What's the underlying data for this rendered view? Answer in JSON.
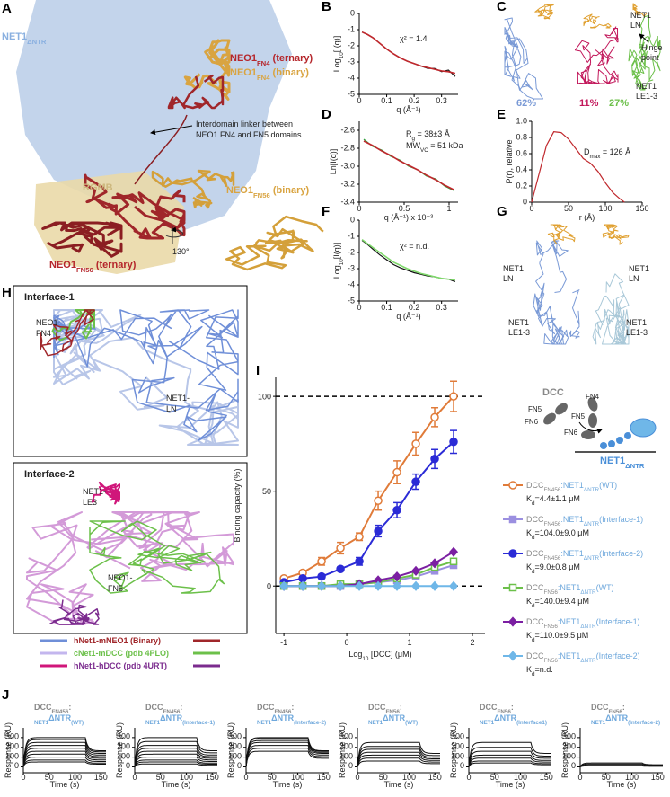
{
  "panel_letters": [
    "A",
    "B",
    "C",
    "D",
    "E",
    "F",
    "G",
    "H",
    "I",
    "J"
  ],
  "panel_A": {
    "net1": [
      "NET1",
      "ΔNTR"
    ],
    "fn4_ternary": [
      "NEO1",
      "FN4",
      " (ternary)"
    ],
    "fn4_binary": [
      "NEO1",
      "FN4",
      " (binary)"
    ],
    "linker_line1": "Interdomain linker between",
    "linker_line2": "NEO1 FN4 and FN5 domains",
    "rgmb": "RGMB",
    "fn56_binary": [
      "NEO1",
      "FN56",
      " (binary)"
    ],
    "rotation": "130°",
    "fn56_ternary": [
      "NEO1",
      "FN56",
      " (ternary)"
    ]
  },
  "panel_C": {
    "ln_line1": "NET1",
    "ln_line2": "LN",
    "hinge_line1": "Hinge",
    "hinge_line2": "point",
    "le_line1": "NET1",
    "le_line2": "LE1-3",
    "pop1": "62%",
    "pop2": "11%",
    "pop3": "27%"
  },
  "panel_G": {
    "ln_left_1": "NET1",
    "ln_left_2": "LN",
    "ln_right_1": "NET1",
    "ln_right_2": "LN",
    "le_left_1": "NET1",
    "le_left_2": "LE1-3",
    "le_right_1": "NET1",
    "le_right_2": "LE1-3"
  },
  "panel_H": {
    "box1_title": "Interface-1",
    "fn4_1": "NEO1-",
    "fn4_2": "FN4",
    "ln_1": "NET1-",
    "ln_2": "LN",
    "box2_title": "Interface-2",
    "le3_1": "NET1-",
    "le3_2": "LE3",
    "fn5_1": "NEO1-",
    "fn5_2": "FN5",
    "legend": [
      {
        "label": "hNet1-mNEO1 (Binary)",
        "color_left": "#6f8fd8",
        "color_right": "#a0262a"
      },
      {
        "label": "cNet1-mDCC (pdb 4PLO)",
        "color_left": "#c3b6ee",
        "color_right": "#6cc04a"
      },
      {
        "label": "hNet1-hDCC (pdb 4URT)",
        "color_left": "#d0167a",
        "color_right": "#7b2b8e"
      }
    ]
  },
  "panel_I_schematic": {
    "dcc": "DCC",
    "fn4": "FN4",
    "fn5_left": "FN5",
    "fn6_left": "FN6",
    "fn5_right": "FN5",
    "fn6_right": "FN6",
    "net1": [
      "NET1",
      "ΔNTR"
    ]
  },
  "chart_data": [
    {
      "type": "line",
      "xlabel": "q (Å⁻¹)",
      "ylabel": [
        "Log",
        "10",
        "[I(q)]"
      ],
      "annotations": [
        [
          "χ² = 1.4"
        ]
      ],
      "x": [
        0.01,
        0.03,
        0.05,
        0.075,
        0.1,
        0.125,
        0.15,
        0.175,
        0.2,
        0.225,
        0.25,
        0.275,
        0.3,
        0.325,
        0.35
      ],
      "series": [
        {
          "color": "#111111",
          "values": [
            -1.15,
            -1.3,
            -1.5,
            -1.85,
            -2.2,
            -2.5,
            -2.75,
            -2.95,
            -3.1,
            -3.25,
            -3.4,
            -3.4,
            -3.6,
            -3.5,
            -3.9
          ]
        },
        {
          "color": "#c0282d",
          "values": [
            -1.15,
            -1.3,
            -1.5,
            -1.85,
            -2.2,
            -2.5,
            -2.75,
            -2.95,
            -3.1,
            -3.25,
            -3.35,
            -3.45,
            -3.55,
            -3.6,
            -3.7
          ]
        }
      ],
      "xlim": [
        0,
        0.36
      ],
      "xticks": [
        0,
        0.1,
        0.2,
        0.3
      ],
      "ylim": [
        -5,
        0
      ],
      "yticks": [
        0,
        -1,
        -2,
        -3,
        -4,
        -5
      ]
    },
    {
      "type": "line",
      "xlabel": "q (Å⁻¹) x 10⁻³",
      "ylabel": [
        "Ln[I(q)]"
      ],
      "annotations": [
        [
          "R",
          "g",
          " = 38±3 Å"
        ],
        [
          "MW",
          "VC",
          " = 51 kDa"
        ]
      ],
      "x": [
        0.05,
        0.15,
        0.25,
        0.35,
        0.45,
        0.55,
        0.65,
        0.75,
        0.85,
        0.95,
        1.05
      ],
      "series": [
        {
          "color": "#2f9e3a",
          "values": [
            -2.7,
            -2.78,
            -2.82,
            -2.89,
            -2.93,
            -3.0,
            -3.04,
            -3.11,
            -3.14,
            -3.22,
            -3.27
          ]
        },
        {
          "color": "#c0282d",
          "values": [
            -2.72,
            -2.77,
            -2.83,
            -2.88,
            -2.94,
            -2.99,
            -3.04,
            -3.1,
            -3.15,
            -3.21,
            -3.26
          ]
        }
      ],
      "xlim": [
        0,
        1.1
      ],
      "xticks": [
        0,
        0.5,
        1
      ],
      "ylim": [
        -3.4,
        -2.5
      ],
      "yticks": [
        -2.6,
        -2.8,
        {
          "value": -3,
          "label": "-3.0"
        },
        -3.2,
        -3.4
      ]
    },
    {
      "type": "line",
      "xlabel": "r (Å)",
      "ylabel": [
        "P(r), relative"
      ],
      "annotations": [
        [
          "D",
          "max",
          " = 126 Å"
        ]
      ],
      "x": [
        0,
        10,
        20,
        30,
        40,
        50,
        60,
        70,
        80,
        90,
        100,
        110,
        120,
        126
      ],
      "series": [
        {
          "color": "#c0282d",
          "values": [
            0,
            0.35,
            0.7,
            0.87,
            0.86,
            0.78,
            0.66,
            0.54,
            0.48,
            0.38,
            0.24,
            0.12,
            0.04,
            0
          ]
        }
      ],
      "xlim": [
        0,
        150
      ],
      "xticks": [
        0,
        50,
        100,
        150
      ],
      "ylim": [
        0,
        1
      ],
      "yticks": [
        0,
        0.2,
        0.4,
        0.6,
        0.8,
        {
          "value": 1,
          "label": "1.0"
        }
      ]
    },
    {
      "type": "line",
      "xlabel": "q (Å⁻¹)",
      "ylabel": [
        "Log",
        "10",
        "[I(q)]"
      ],
      "annotations": [
        [
          "χ² = n.d."
        ]
      ],
      "x": [
        0.01,
        0.03,
        0.05,
        0.075,
        0.1,
        0.125,
        0.15,
        0.175,
        0.2,
        0.225,
        0.25,
        0.275,
        0.3,
        0.325,
        0.35
      ],
      "series": [
        {
          "color": "#111111",
          "values": [
            -1.25,
            -1.5,
            -1.8,
            -2.15,
            -2.45,
            -2.75,
            -2.95,
            -3.1,
            -3.25,
            -3.35,
            -3.45,
            -3.5,
            -3.6,
            -3.65,
            -3.8
          ]
        },
        {
          "color": "#7fd86b",
          "values": [
            -1.2,
            -1.45,
            -1.7,
            -2.0,
            -2.3,
            -2.6,
            -2.8,
            -3.0,
            -3.15,
            -3.3,
            -3.4,
            -3.5,
            -3.6,
            -3.65,
            -3.7
          ]
        }
      ],
      "xlim": [
        0,
        0.36
      ],
      "xticks": [
        0,
        0.1,
        0.2,
        0.3
      ],
      "ylim": [
        -5,
        0
      ],
      "yticks": [
        0,
        -1,
        -2,
        -3,
        -4,
        -5
      ]
    },
    {
      "type": "scatter",
      "xlabel": [
        "Log",
        "10",
        " [DCC] (μM)"
      ],
      "ylabel": [
        "Binding capacity (%)"
      ],
      "x": [
        -1,
        -0.7,
        -0.4,
        -0.1,
        0.2,
        0.5,
        0.8,
        1.1,
        1.4,
        1.7
      ],
      "reference_lines": [
        100,
        0
      ],
      "series": [
        {
          "name": [
            "DCC",
            "FN456",
            ":NET1",
            "ΔNTR",
            "(WT)"
          ],
          "kd": [
            "K",
            "d",
            "=4.4±1.1 μM"
          ],
          "color": "#e07b39",
          "marker": "circle",
          "filled": false,
          "values": [
            4,
            7,
            13,
            20,
            26,
            45,
            60,
            75,
            89,
            100
          ],
          "errors": [
            1,
            1,
            2,
            3,
            2,
            5,
            6,
            6,
            5,
            8
          ]
        },
        {
          "name": [
            "DCC",
            "FN456",
            ":NET1",
            "ΔNTR",
            "(Interface-1)"
          ],
          "kd": [
            "K",
            "d",
            "=104.0±9.0 μM"
          ],
          "color": "#9b8fe0",
          "marker": "square",
          "filled": true,
          "values": [
            0,
            0,
            0,
            0,
            1,
            2,
            3,
            5,
            8,
            11
          ]
        },
        {
          "name": [
            "DCC",
            "FN456",
            ":NET1",
            "ΔNTR",
            "(Interface-2)"
          ],
          "kd": [
            "K",
            "d",
            "=9.0±0.8 μM"
          ],
          "color": "#2b2bd6",
          "marker": "circle",
          "filled": true,
          "values": [
            2,
            4,
            5,
            9,
            13,
            29,
            40,
            55,
            67,
            76
          ],
          "errors": [
            1,
            1,
            1,
            1,
            2,
            3,
            4,
            4,
            5,
            6
          ]
        },
        {
          "name": [
            "DCC",
            "FN56",
            ":NET1",
            "ΔNTR",
            "(WT)"
          ],
          "kd": [
            "K",
            "d",
            "=140.0±9.4 μM"
          ],
          "color": "#6cc04a",
          "marker": "square",
          "filled": false,
          "values": [
            0,
            0,
            0,
            1,
            1,
            2,
            4,
            6,
            10,
            13
          ]
        },
        {
          "name": [
            "DCC",
            "FN56",
            ":NET1",
            "ΔNTR",
            "(Interface-1)"
          ],
          "kd": [
            "K",
            "d",
            "=110.0±9.5 μM"
          ],
          "color": "#7b1fa2",
          "marker": "diamond",
          "filled": true,
          "values": [
            0,
            0,
            0,
            0,
            1,
            3,
            5,
            8,
            12,
            18
          ]
        },
        {
          "name": [
            "DCC",
            "FN56",
            ":NET1",
            "ΔNTR",
            "(Interface-2)"
          ],
          "kd": [
            "K",
            "d",
            "=n.d."
          ],
          "color": "#6fb7e8",
          "marker": "diamond",
          "filled": true,
          "values": [
            0,
            0,
            0,
            0,
            0,
            0,
            0,
            0,
            0,
            0
          ]
        }
      ],
      "xlim": [
        -1.13,
        2.2
      ],
      "xticks": [
        -1,
        0,
        1,
        2
      ],
      "ylim": [
        -25,
        110
      ],
      "yticks": [
        0,
        50,
        100
      ]
    },
    {
      "type": "sensorgram",
      "title": [
        "DCC",
        "FN456",
        ":",
        "NET1",
        "ΔNTR",
        "(WT)"
      ],
      "xlabel": "Time (s)",
      "ylabel": "Response (RU)",
      "color": "#111111",
      "values": [
        300,
        280,
        250,
        220,
        190,
        160,
        130,
        100,
        70,
        50
      ],
      "xlim": [
        0,
        160
      ],
      "xticks": [
        0,
        50,
        100,
        150
      ],
      "ylim": [
        -60,
        400
      ],
      "yticks": [
        0,
        100,
        200,
        300
      ]
    },
    {
      "type": "sensorgram",
      "title": [
        "DCC",
        "FN456",
        ":",
        "NET1",
        "ΔNTR",
        "(Interface-1)"
      ],
      "xlabel": "Time (s)",
      "ylabel": "Response (RU)",
      "color": "#111111",
      "values": [
        300,
        260,
        220,
        190,
        160,
        130,
        100,
        70,
        50,
        30
      ],
      "xlim": [
        0,
        160
      ],
      "xticks": [
        0,
        50,
        100,
        150
      ],
      "ylim": [
        -60,
        400
      ],
      "yticks": [
        0,
        100,
        200,
        300
      ]
    },
    {
      "type": "sensorgram",
      "title": [
        "DCC",
        "FN456",
        ":",
        "NET1",
        "ΔNTR",
        "(Interface-2)"
      ],
      "xlabel": "Time (s)",
      "ylabel": "Response (RU)",
      "color": "#111111",
      "values": [
        300,
        290,
        270,
        250,
        220,
        190,
        160
      ],
      "xlim": [
        0,
        160
      ],
      "xticks": [
        0,
        50,
        100,
        150
      ],
      "ylim": [
        -60,
        400
      ],
      "yticks": [
        0,
        100,
        200,
        300
      ]
    },
    {
      "type": "sensorgram",
      "title": [
        "DCC",
        "FN56",
        ":",
        "NET1",
        "ΔNTR",
        "(WT)"
      ],
      "xlabel": "Time (s)",
      "ylabel": "Response (RU)",
      "color": "#111111",
      "values": [
        250,
        210,
        180,
        150,
        120,
        90,
        60
      ],
      "xlim": [
        0,
        160
      ],
      "xticks": [
        0,
        50,
        100,
        150
      ],
      "ylim": [
        -60,
        400
      ],
      "yticks": [
        0,
        100,
        200,
        300
      ]
    },
    {
      "type": "sensorgram",
      "title": [
        "DCC",
        "FN56",
        ":",
        "NET1",
        "ΔNTR",
        "(Interface1)"
      ],
      "xlabel": "Time (s)",
      "ylabel": "Response (RU)",
      "color": "#111111",
      "values": [
        250,
        200,
        160,
        120,
        90,
        60,
        40
      ],
      "xlim": [
        0,
        160
      ],
      "xticks": [
        0,
        50,
        100,
        150
      ],
      "ylim": [
        -60,
        400
      ],
      "yticks": [
        0,
        100,
        200,
        300
      ]
    },
    {
      "type": "sensorgram",
      "title": [
        "DCC",
        "FN56",
        ":",
        "NET1",
        "ΔNTR",
        "(Interface-2)"
      ],
      "xlabel": "Time (s)",
      "ylabel": "Response (RU)",
      "color": "#111111",
      "values": [
        40,
        30,
        20,
        10
      ],
      "xlim": [
        0,
        160
      ],
      "xticks": [
        0,
        50,
        100,
        150
      ],
      "ylim": [
        -60,
        400
      ],
      "yticks": [
        0,
        100,
        200,
        300
      ]
    }
  ]
}
